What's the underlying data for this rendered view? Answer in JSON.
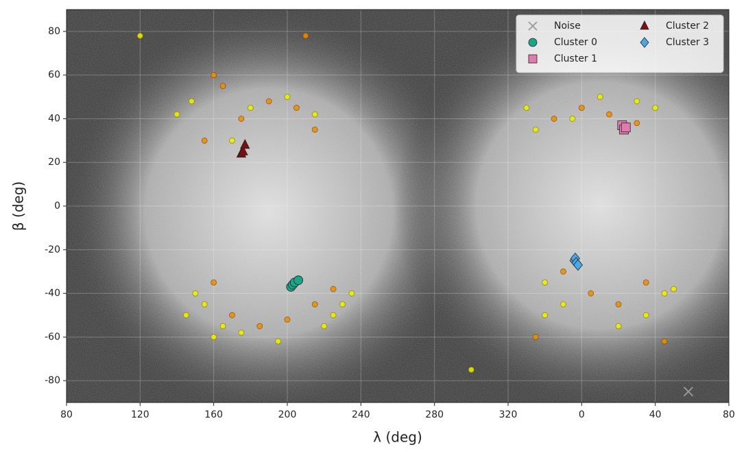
{
  "chart_data": {
    "type": "scatter",
    "xlabel": "λ (deg)",
    "ylabel": "β (deg)",
    "xlim": [
      80,
      440
    ],
    "ylim": [
      -90,
      90
    ],
    "xticks": [
      80,
      120,
      160,
      200,
      240,
      280,
      320,
      {
        "value": 360,
        "label": "0"
      },
      {
        "value": 400,
        "label": "40"
      },
      {
        "value": 440,
        "label": "80"
      }
    ],
    "yticks": [
      -80,
      -60,
      -40,
      -20,
      0,
      20,
      40,
      60,
      80
    ],
    "grid": true,
    "legend": "upper right",
    "series": [
      {
        "color": "#f0f000",
        "marker": "o",
        "x": [
          140,
          148,
          155,
          165,
          180,
          200,
          215,
          225,
          230,
          150,
          160,
          175,
          195,
          220,
          235,
          145,
          170,
          330,
          340,
          355,
          370,
          390,
          400,
          405,
          335,
          350,
          380,
          395,
          410,
          120,
          300,
          340
        ],
        "y": [
          42,
          48,
          -45,
          -55,
          45,
          50,
          42,
          -50,
          -45,
          -40,
          -60,
          -58,
          -62,
          -55,
          -40,
          -50,
          30,
          45,
          -35,
          40,
          50,
          48,
          45,
          -40,
          35,
          -45,
          -55,
          -50,
          -38,
          78,
          -75,
          -50
        ]
      },
      {
        "color": "#f08c00",
        "marker": "o",
        "x": [
          155,
          165,
          175,
          190,
          205,
          215,
          160,
          170,
          185,
          200,
          215,
          225,
          345,
          360,
          375,
          390,
          350,
          365,
          380,
          395,
          160,
          210,
          335,
          405
        ],
        "y": [
          30,
          55,
          40,
          48,
          45,
          35,
          -35,
          -50,
          -55,
          -52,
          -45,
          -38,
          40,
          45,
          42,
          38,
          -30,
          -40,
          -45,
          -35,
          60,
          78,
          -60,
          -62
        ]
      },
      {
        "name": "Noise",
        "color": "#999999",
        "marker": "x",
        "x": [
          418
        ],
        "y": [
          -85
        ]
      },
      {
        "name": "Cluster 0",
        "color": "#1aa58a",
        "marker": "o",
        "x": [
          202,
          203,
          204,
          206
        ],
        "y": [
          -37,
          -36,
          -35,
          -34
        ]
      },
      {
        "name": "Cluster 1",
        "color": "#e07bb0",
        "marker": "s",
        "x": [
          382,
          383,
          384
        ],
        "y": [
          37,
          35,
          36
        ]
      },
      {
        "name": "Cluster 2",
        "color": "#7a1010",
        "marker": "^",
        "x": [
          175,
          176,
          177
        ],
        "y": [
          24,
          25,
          28
        ]
      },
      {
        "name": "Cluster 3",
        "color": "#4aa8e8",
        "marker": "D",
        "x": [
          356,
          356.5,
          357,
          358
        ],
        "y": [
          -25,
          -24,
          -26,
          -27
        ]
      }
    ]
  }
}
